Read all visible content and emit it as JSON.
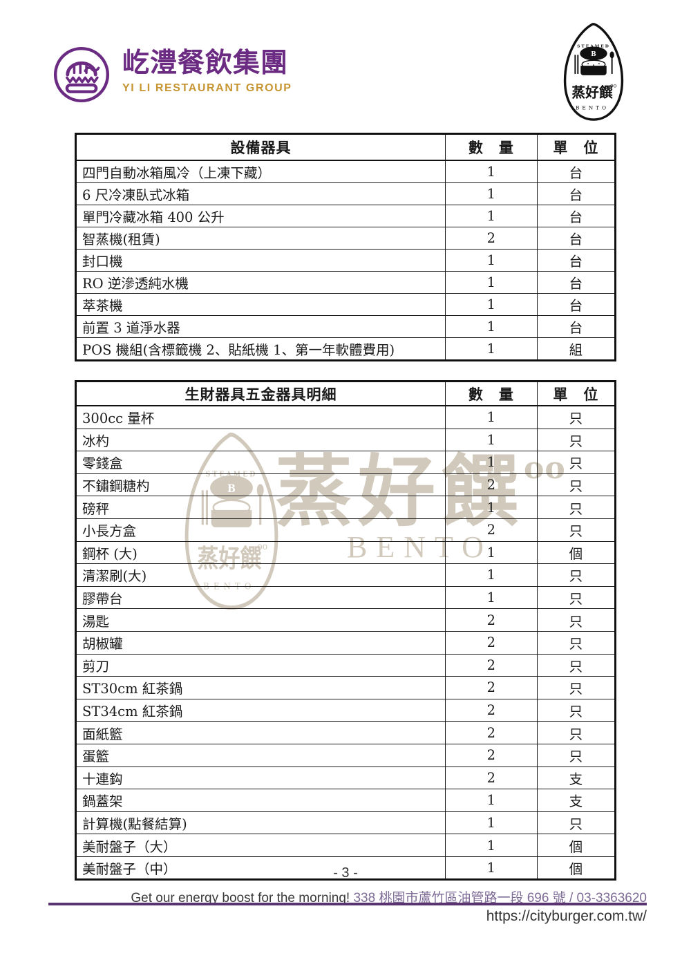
{
  "header": {
    "brand_name_zh": "屹澧餐飲集團",
    "brand_name_en": "YI LI RESTAURANT GROUP",
    "grain_logo": {
      "steamed_label": "STEAMED",
      "lid_letter": "B",
      "name_zh": "蒸好饌",
      "name_en": "BENTO"
    }
  },
  "tables": [
    {
      "headers": [
        "設備器具",
        "數　量",
        "單　位"
      ],
      "rows": [
        [
          "四門自動冰箱風冷（上凍下藏）",
          "1",
          "台"
        ],
        [
          "6 尺冷凍臥式冰箱",
          "1",
          "台"
        ],
        [
          "單門冷藏冰箱 400 公升",
          "1",
          "台"
        ],
        [
          "智蒸機(租賃)",
          "2",
          "台"
        ],
        [
          "封口機",
          "1",
          "台"
        ],
        [
          "RO 逆滲透純水機",
          "1",
          "台"
        ],
        [
          "萃茶機",
          "1",
          "台"
        ],
        [
          "前置 3 道淨水器",
          "1",
          "台"
        ],
        [
          "POS 機組(含標籤機 2、貼紙機 1、第一年軟體費用)",
          "1",
          "組"
        ]
      ]
    },
    {
      "headers": [
        "生財器具五金器具明細",
        "數　量",
        "單　位"
      ],
      "rows": [
        [
          "300cc 量杯",
          "1",
          "只"
        ],
        [
          "冰杓",
          "1",
          "只"
        ],
        [
          "零錢盒",
          "1",
          "只"
        ],
        [
          "不鏽鋼糖杓",
          "2",
          "只"
        ],
        [
          "磅秤",
          "1",
          "只"
        ],
        [
          "小長方盒",
          "2",
          "只"
        ],
        [
          "鋼杯 (大)",
          "1",
          "個"
        ],
        [
          "清潔刷(大)",
          "1",
          "只"
        ],
        [
          "膠帶台",
          "1",
          "只"
        ],
        [
          "湯匙",
          "2",
          "只"
        ],
        [
          "胡椒罐",
          "2",
          "只"
        ],
        [
          "剪刀",
          "2",
          "只"
        ],
        [
          "ST30cm 紅茶鍋",
          "2",
          "只"
        ],
        [
          "ST34cm 紅茶鍋",
          "2",
          "只"
        ],
        [
          "面紙籃",
          "2",
          "只"
        ],
        [
          "蛋籃",
          "2",
          "只"
        ],
        [
          "十連鈎",
          "2",
          "支"
        ],
        [
          "鍋蓋架",
          "1",
          "支"
        ],
        [
          "計算機(點餐結算)",
          "1",
          "只"
        ],
        [
          "美耐盤子（大）",
          "1",
          "個"
        ],
        [
          "美耐盤子（中）",
          "1",
          "個"
        ]
      ]
    }
  ],
  "watermark": {
    "name_zh": "蒸好饌",
    "superscript": "oo",
    "name_en": "BENTO"
  },
  "footer": {
    "page_number": "- 3 -",
    "tagline": "Get our energy boost for the morning!",
    "address": "338 桃園市蘆竹區油管路一段 696 號 / 03-3363620",
    "url": "https://cityburger.com.tw/"
  },
  "colors": {
    "brand_purple": "#6c2b82",
    "brand_gold": "#c79531",
    "footer_rule_purple": "#5a3470",
    "footer_address_purple": "#7d6b96",
    "watermark_tan": "#d1c9bb",
    "table_border": "#111111"
  }
}
